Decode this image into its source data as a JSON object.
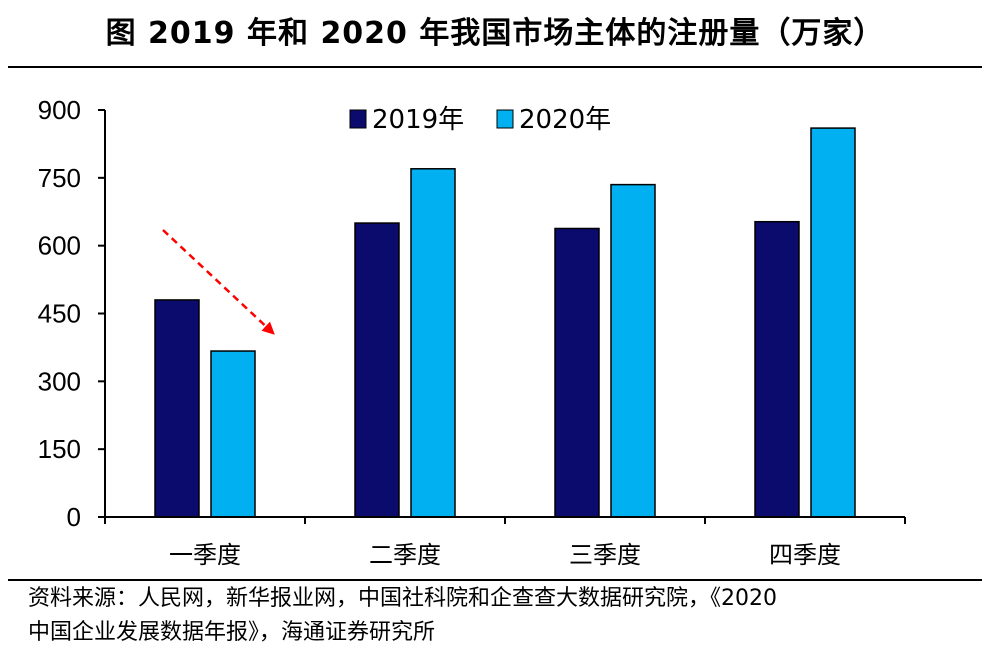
{
  "title": "图  2019 年和 2020 年我国市场主体的注册量（万家）",
  "source": {
    "line1": "资料来源：人民网，新华报业网，中国社科院和企查查大数据研究院，《2020",
    "line2": "中国企业发展数据年报》，海通证券研究所"
  },
  "colors": {
    "s2019": "#0b0b6e",
    "s2020": "#00b0f0",
    "arrow": "#ff0000"
  },
  "chart_data": {
    "type": "bar",
    "title": "2019 年和 2020 年我国市场主体的注册量（万家）",
    "xlabel": "",
    "ylabel": "",
    "categories": [
      "一季度",
      "二季度",
      "三季度",
      "四季度"
    ],
    "series": [
      {
        "name": "2019年",
        "values": [
          480,
          650,
          638,
          653
        ]
      },
      {
        "name": "2020年",
        "values": [
          367,
          770,
          735,
          860
        ]
      }
    ],
    "ylim": [
      0,
      900
    ],
    "yticks": [
      0,
      150,
      300,
      450,
      600,
      750,
      900
    ],
    "ytick_labels": [
      "0",
      "150",
      "300",
      "450",
      "600",
      "750",
      "900"
    ],
    "legend": "top-center",
    "grid": false,
    "annotations": [
      {
        "type": "arrow",
        "style": "dashed",
        "target": "一季度 2020年",
        "meaning": "decline"
      }
    ]
  }
}
